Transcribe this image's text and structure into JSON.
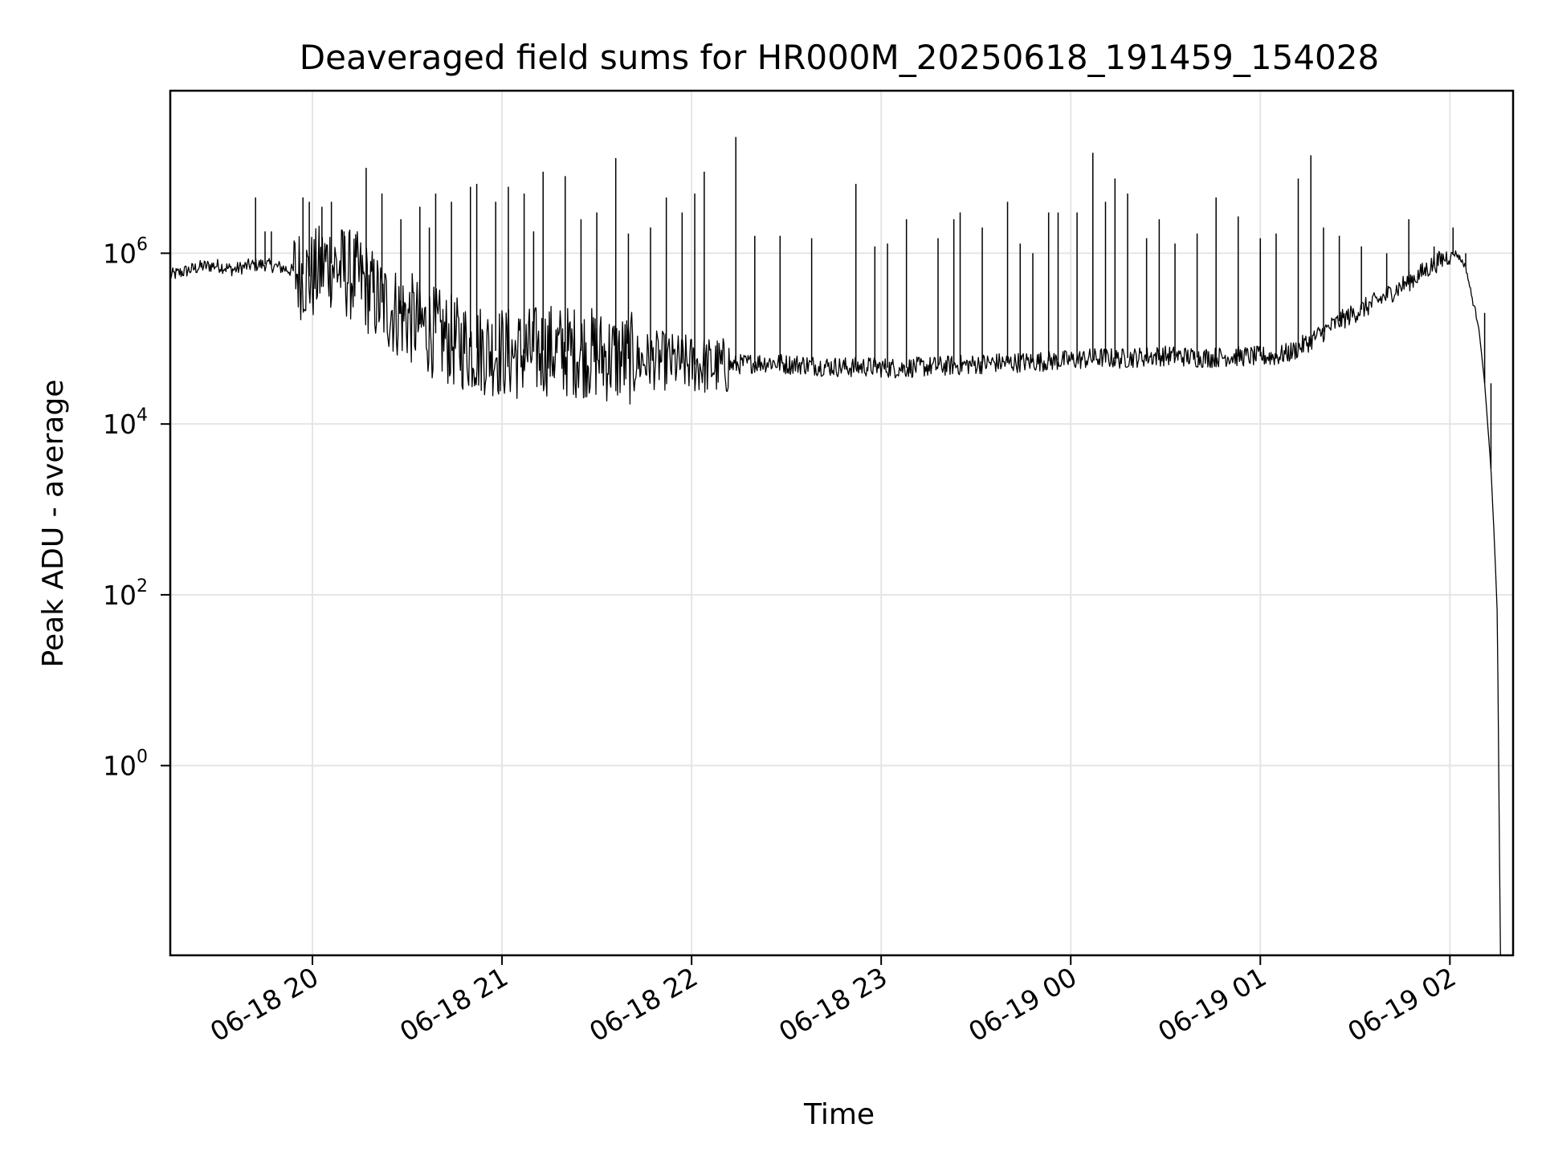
{
  "chart_data": {
    "type": "line",
    "title": "Deaveraged field sums for HR000M_20250618_191459_154028",
    "xlabel": "Time",
    "ylabel": "Peak ADU - average",
    "yscale": "log",
    "grid": true,
    "line_color": "#000000",
    "x_ticks": [
      "06-18 20",
      "06-18 21",
      "06-18 22",
      "06-18 23",
      "06-19 00",
      "06-19 01",
      "06-19 02"
    ],
    "y_ticks": [
      {
        "base": "10",
        "exp": "0",
        "value": 1
      },
      {
        "base": "10",
        "exp": "2",
        "value": 100
      },
      {
        "base": "10",
        "exp": "4",
        "value": 10000
      },
      {
        "base": "10",
        "exp": "6",
        "value": 1000000
      }
    ],
    "xlim": [
      "06-18 19:15",
      "06-19 02:20"
    ],
    "ylim": [
      0.006,
      80000000
    ],
    "series": [
      {
        "points": [
          [
            "06-18 19:15",
            550000
          ],
          [
            "06-18 19:20",
            620000
          ],
          [
            "06-18 19:25",
            700000
          ],
          [
            "06-18 19:30",
            720000
          ],
          [
            "06-18 19:35",
            640000
          ],
          [
            "06-18 19:40",
            720000
          ],
          [
            "06-18 19:45",
            740000
          ],
          [
            "06-18 19:50",
            680000
          ],
          [
            "06-18 19:55",
            600000
          ],
          [
            "06-18 20:00",
            520000
          ],
          [
            "06-18 20:05",
            800000
          ],
          [
            "06-18 20:10",
            600000
          ],
          [
            "06-18 20:15",
            500000
          ],
          [
            "06-18 20:20",
            300000
          ],
          [
            "06-18 20:25",
            220000
          ],
          [
            "06-18 20:30",
            180000
          ],
          [
            "06-18 20:35",
            140000
          ],
          [
            "06-18 20:40",
            110000
          ],
          [
            "06-18 20:45",
            90000
          ],
          [
            "06-18 20:50",
            80000
          ],
          [
            "06-18 20:55",
            75000
          ],
          [
            "06-18 21:00",
            70000
          ],
          [
            "06-18 21:05",
            65000
          ],
          [
            "06-18 21:10",
            70000
          ],
          [
            "06-18 21:15",
            75000
          ],
          [
            "06-18 21:20",
            70000
          ],
          [
            "06-18 21:25",
            72000
          ],
          [
            "06-18 21:30",
            65000
          ],
          [
            "06-18 21:35",
            60000
          ],
          [
            "06-18 21:40",
            58000
          ],
          [
            "06-18 21:45",
            55000
          ],
          [
            "06-18 21:50",
            56000
          ],
          [
            "06-18 21:55",
            52000
          ],
          [
            "06-18 22:00",
            50000
          ],
          [
            "06-18 22:05",
            48000
          ],
          [
            "06-18 22:10",
            47000
          ],
          [
            "06-18 22:15",
            50000
          ],
          [
            "06-18 22:20",
            52000
          ],
          [
            "06-18 22:25",
            53000
          ],
          [
            "06-18 22:30",
            50000
          ],
          [
            "06-18 22:35",
            50000
          ],
          [
            "06-18 22:40",
            48000
          ],
          [
            "06-18 22:45",
            47000
          ],
          [
            "06-18 22:50",
            46000
          ],
          [
            "06-18 22:55",
            47000
          ],
          [
            "06-18 23:00",
            46000
          ],
          [
            "06-18 23:05",
            45000
          ],
          [
            "06-18 23:10",
            46000
          ],
          [
            "06-18 23:15",
            47000
          ],
          [
            "06-18 23:20",
            48000
          ],
          [
            "06-18 23:25",
            49000
          ],
          [
            "06-18 23:30",
            50000
          ],
          [
            "06-18 23:35",
            52000
          ],
          [
            "06-18 23:40",
            52000
          ],
          [
            "06-18 23:45",
            53000
          ],
          [
            "06-18 23:50",
            54000
          ],
          [
            "06-18 23:55",
            55000
          ],
          [
            "06-19 00:00",
            56000
          ],
          [
            "06-19 00:05",
            58000
          ],
          [
            "06-19 00:10",
            60000
          ],
          [
            "06-19 00:15",
            58000
          ],
          [
            "06-19 00:20",
            60000
          ],
          [
            "06-19 00:25",
            62000
          ],
          [
            "06-19 00:30",
            63000
          ],
          [
            "06-19 00:35",
            62000
          ],
          [
            "06-19 00:40",
            60000
          ],
          [
            "06-19 00:45",
            60000
          ],
          [
            "06-19 00:50",
            62000
          ],
          [
            "06-19 00:55",
            62000
          ],
          [
            "06-19 01:00",
            62000
          ],
          [
            "06-19 01:05",
            62000
          ],
          [
            "06-19 01:10",
            70000
          ],
          [
            "06-19 01:15",
            90000
          ],
          [
            "06-19 01:20",
            120000
          ],
          [
            "06-19 01:25",
            160000
          ],
          [
            "06-19 01:30",
            200000
          ],
          [
            "06-19 01:35",
            250000
          ],
          [
            "06-19 01:40",
            320000
          ],
          [
            "06-19 01:45",
            420000
          ],
          [
            "06-19 01:50",
            550000
          ],
          [
            "06-19 01:55",
            750000
          ],
          [
            "06-19 02:00",
            950000
          ],
          [
            "06-19 02:02",
            1000000
          ],
          [
            "06-19 02:05",
            700000
          ],
          [
            "06-19 02:07",
            300000
          ],
          [
            "06-19 02:09",
            150000
          ],
          [
            "06-19 02:11",
            30000
          ],
          [
            "06-19 02:13",
            3000
          ],
          [
            "06-19 02:14",
            500
          ],
          [
            "06-19 02:15",
            60
          ],
          [
            "06-19 02:16",
            0.006
          ]
        ]
      }
    ],
    "spikes": [
      [
        "06-18 19:42",
        4500000
      ],
      [
        "06-18 19:45",
        1800000
      ],
      [
        "06-18 19:47",
        1800000
      ],
      [
        "06-18 19:57",
        4500000
      ],
      [
        "06-18 19:59",
        4000000
      ],
      [
        "06-18 20:03",
        3500000
      ],
      [
        "06-18 20:06",
        4000000
      ],
      [
        "06-18 20:10",
        1800000
      ],
      [
        "06-18 20:17",
        10000000
      ],
      [
        "06-18 20:22",
        5000000
      ],
      [
        "06-18 20:28",
        2500000
      ],
      [
        "06-18 20:34",
        3500000
      ],
      [
        "06-18 20:37",
        2000000
      ],
      [
        "06-18 20:39",
        5000000
      ],
      [
        "06-18 20:44",
        4000000
      ],
      [
        "06-18 20:50",
        6000000
      ],
      [
        "06-18 20:52",
        6500000
      ],
      [
        "06-18 20:58",
        4000000
      ],
      [
        "06-18 21:02",
        6000000
      ],
      [
        "06-18 21:07",
        5000000
      ],
      [
        "06-18 21:10",
        1800000
      ],
      [
        "06-18 21:13",
        9000000
      ],
      [
        "06-18 21:20",
        8000000
      ],
      [
        "06-18 21:25",
        2500000
      ],
      [
        "06-18 21:30",
        3000000
      ],
      [
        "06-18 21:36",
        13000000
      ],
      [
        "06-18 21:40",
        1700000
      ],
      [
        "06-18 21:47",
        2000000
      ],
      [
        "06-18 21:52",
        4500000
      ],
      [
        "06-18 21:57",
        3000000
      ],
      [
        "06-18 22:01",
        5000000
      ],
      [
        "06-18 22:04",
        9000000
      ],
      [
        "06-18 22:14",
        23000000
      ],
      [
        "06-18 22:20",
        1600000
      ],
      [
        "06-18 22:28",
        1600000
      ],
      [
        "06-18 22:38",
        1500000
      ],
      [
        "06-18 22:52",
        6500000
      ],
      [
        "06-18 22:58",
        1200000
      ],
      [
        "06-18 23:02",
        1300000
      ],
      [
        "06-18 23:08",
        2500000
      ],
      [
        "06-18 23:18",
        1500000
      ],
      [
        "06-18 23:23",
        2500000
      ],
      [
        "06-18 23:25",
        3000000
      ],
      [
        "06-18 23:32",
        2000000
      ],
      [
        "06-18 23:40",
        4000000
      ],
      [
        "06-18 23:44",
        1300000
      ],
      [
        "06-18 23:48",
        1000000
      ],
      [
        "06-18 23:53",
        3000000
      ],
      [
        "06-18 23:56",
        3000000
      ],
      [
        "06-19 00:02",
        3000000
      ],
      [
        "06-19 00:07",
        15000000
      ],
      [
        "06-19 00:11",
        4000000
      ],
      [
        "06-19 00:14",
        7500000
      ],
      [
        "06-19 00:18",
        5000000
      ],
      [
        "06-19 00:24",
        1500000
      ],
      [
        "06-19 00:28",
        2500000
      ],
      [
        "06-19 00:33",
        1300000
      ],
      [
        "06-19 00:40",
        1700000
      ],
      [
        "06-19 00:46",
        4500000
      ],
      [
        "06-19 00:53",
        2700000
      ],
      [
        "06-19 01:00",
        1500000
      ],
      [
        "06-19 01:05",
        1700000
      ],
      [
        "06-19 01:12",
        7500000
      ],
      [
        "06-19 01:16",
        14000000
      ],
      [
        "06-19 01:20",
        2000000
      ],
      [
        "06-19 01:25",
        1600000
      ],
      [
        "06-19 01:32",
        1200000
      ],
      [
        "06-19 01:40",
        1000000
      ],
      [
        "06-19 01:47",
        2500000
      ],
      [
        "06-19 01:55",
        1200000
      ],
      [
        "06-19 02:01",
        2000000
      ],
      [
        "06-19 02:05",
        1000000
      ],
      [
        "06-19 02:11",
        200000
      ],
      [
        "06-19 02:13",
        30000
      ]
    ]
  }
}
